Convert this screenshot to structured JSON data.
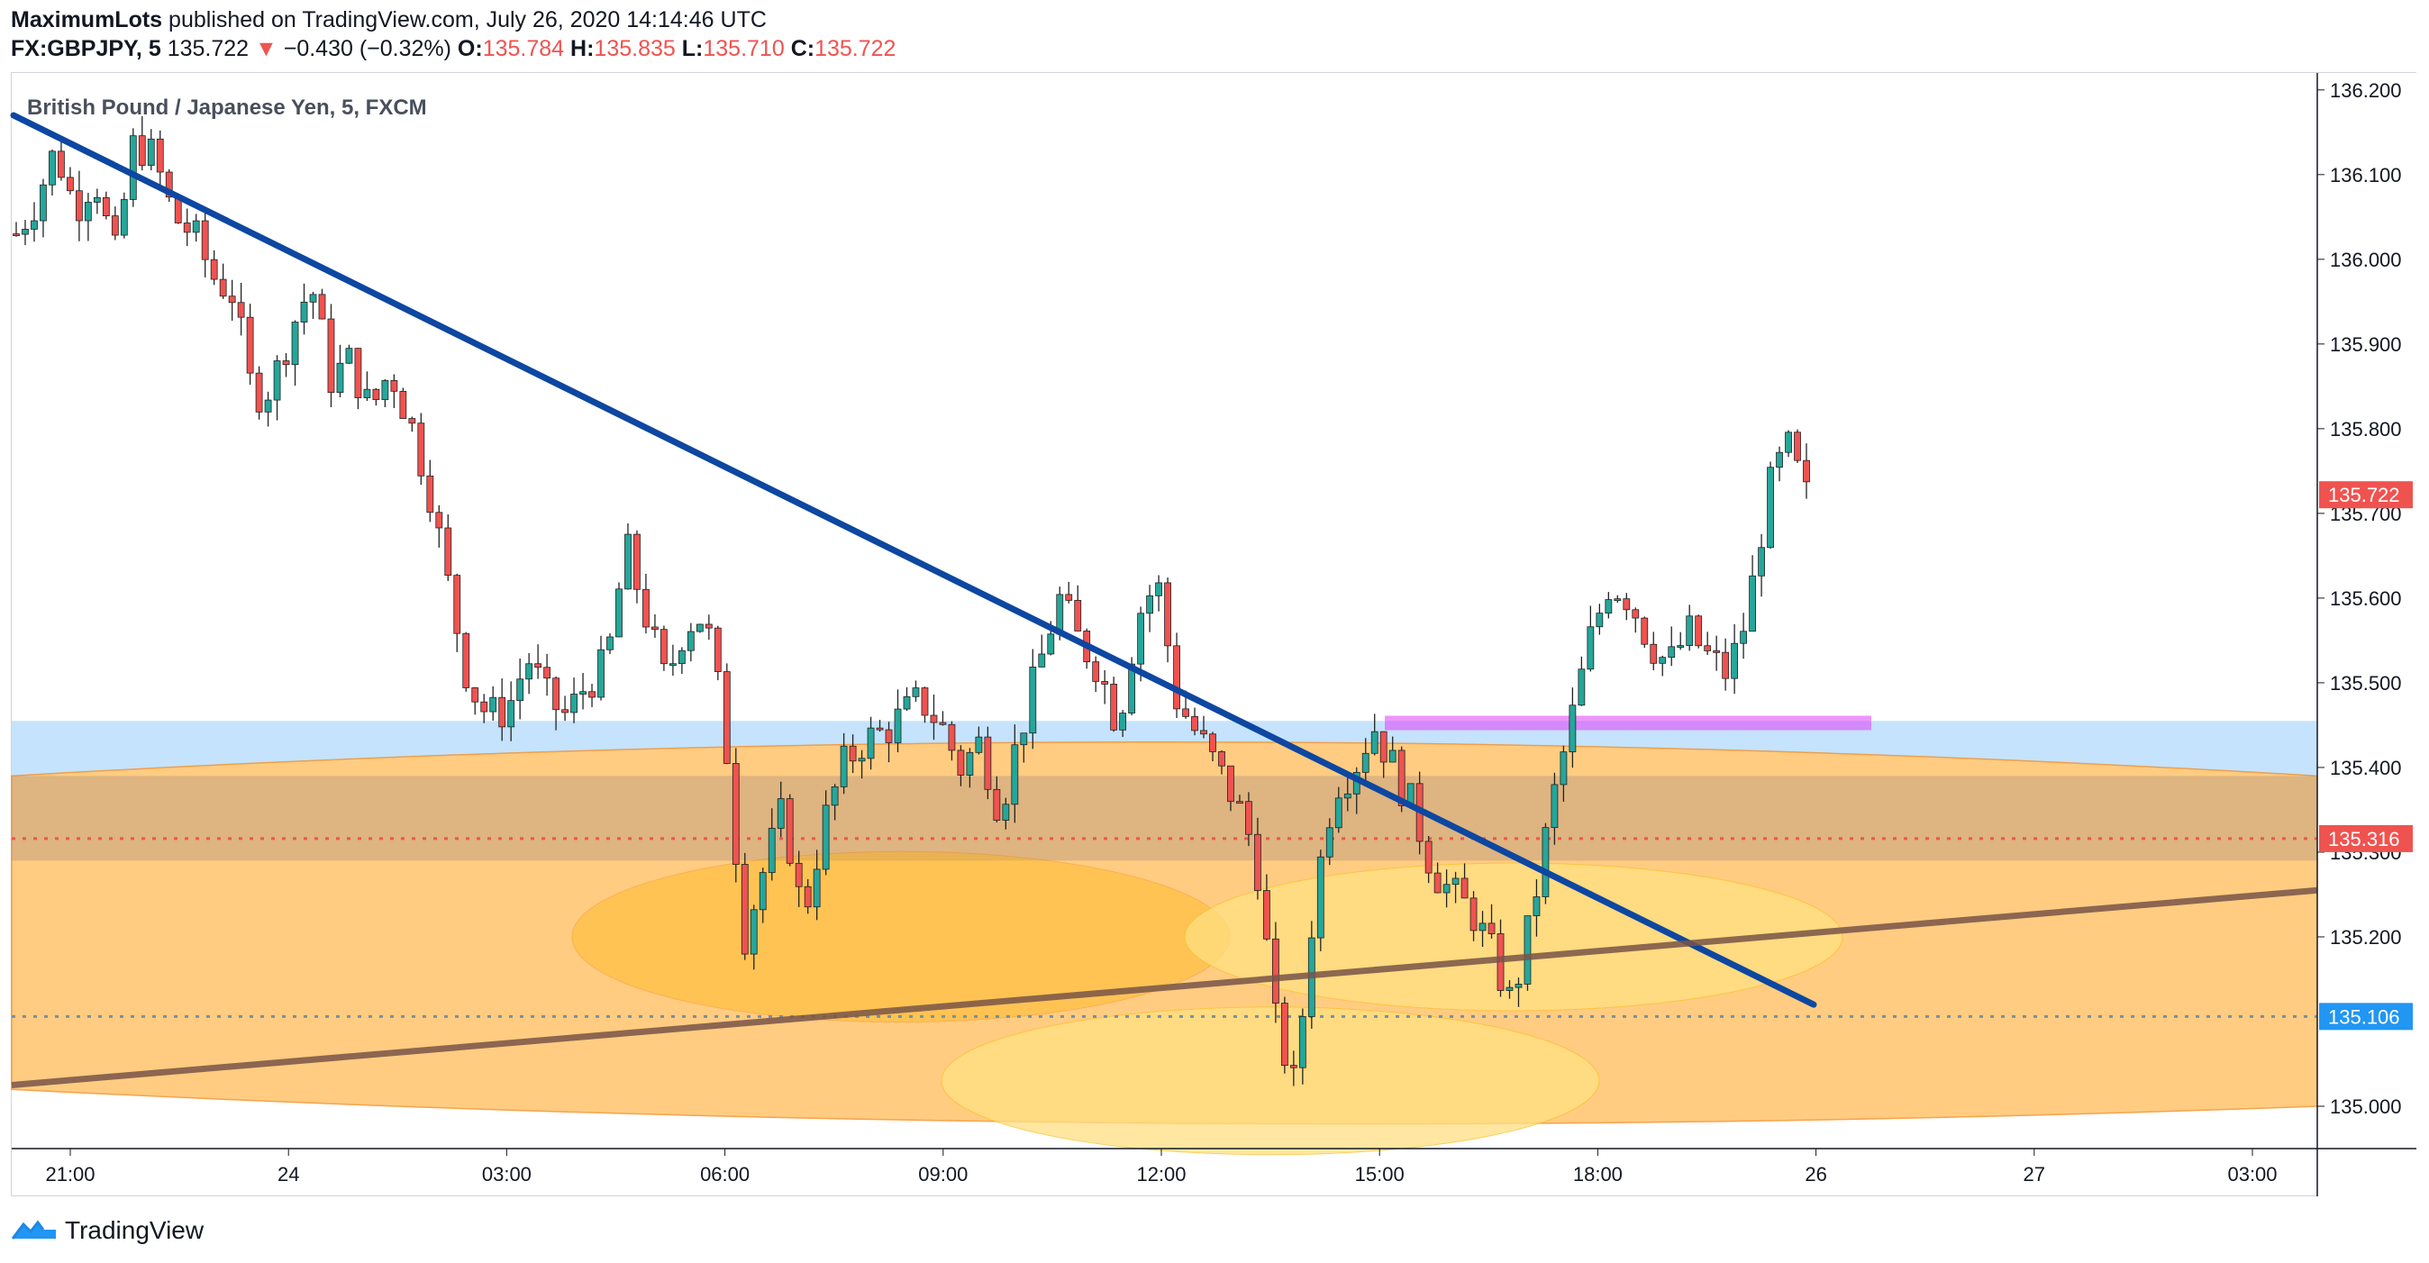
{
  "header": {
    "publisher": "MaximumLots",
    "published_text": "published on TradingView.com, July 26, 2020 14:14:46 UTC",
    "symbol": "FX:GBPJPY, 5",
    "last": "135.722",
    "change_arrow": "▼",
    "change": "−0.430 (−0.32%)",
    "o_label": "O:",
    "o_val": "135.784",
    "h_label": "H:",
    "h_val": "135.835",
    "l_label": "L:",
    "l_val": "135.710",
    "c_label": "C:",
    "c_val": "135.722"
  },
  "legend": "British Pound / Japanese Yen, 5, FXCM",
  "footer": {
    "brand": "TradingView"
  },
  "colors": {
    "up": "#26a69a",
    "down": "#ef5350",
    "trendline": "#0d47a1",
    "support_line": "#795548",
    "zone_blue": "#bbdefb",
    "zone_orange": "#ffb74d",
    "ellipse_yellow": "#ffe082",
    "magenta": "#e040fb",
    "label_red": "#ef5350",
    "label_blue": "#2196f3"
  },
  "chart_data": {
    "type": "candlestick",
    "y_axis": {
      "ticks": [
        "136.200",
        "136.100",
        "136.000",
        "135.900",
        "135.800",
        "135.700",
        "135.600",
        "135.500",
        "135.400",
        "135.300",
        "135.200",
        "135.000"
      ],
      "ylim": [
        134.95,
        136.22
      ]
    },
    "x_axis": {
      "ticks": [
        "21:00",
        "24",
        "03:00",
        "06:00",
        "09:00",
        "12:00",
        "15:00",
        "18:00",
        "26",
        "27",
        "03:00"
      ]
    },
    "price_labels": [
      {
        "value": "135.722",
        "color": "#ef5350"
      },
      {
        "value": "135.316",
        "color": "#ef5350"
      },
      {
        "value": "135.106",
        "color": "#2196f3"
      }
    ],
    "close_path": [
      136.03,
      136.07,
      136.13,
      136.06,
      136.1,
      136.0,
      136.14,
      136.12,
      136.05,
      136.03,
      135.98,
      135.96,
      135.84,
      135.85,
      135.92,
      135.97,
      135.86,
      135.88,
      135.82,
      135.87,
      135.81,
      135.73,
      135.61,
      135.5,
      135.46,
      135.47,
      135.53,
      135.48,
      135.46,
      135.5,
      135.52,
      135.66,
      135.58,
      135.5,
      135.57,
      135.58,
      135.45,
      135.2,
      135.28,
      135.35,
      135.22,
      135.33,
      135.4,
      135.43,
      135.44,
      135.46,
      135.48,
      135.45,
      135.4,
      135.43,
      135.35,
      135.44,
      135.52,
      135.6,
      135.55,
      135.52,
      135.45,
      135.58,
      135.62,
      135.48,
      135.44,
      135.4,
      135.36,
      135.3,
      135.1,
      135.02,
      135.25,
      135.38,
      135.4,
      135.45,
      135.4,
      135.35,
      135.28,
      135.25,
      135.23,
      135.18,
      135.12,
      135.22,
      135.35,
      135.45,
      135.55,
      135.62,
      135.6,
      135.55,
      135.52,
      135.56,
      135.53,
      135.51,
      135.58,
      135.72,
      135.78,
      135.72
    ]
  }
}
